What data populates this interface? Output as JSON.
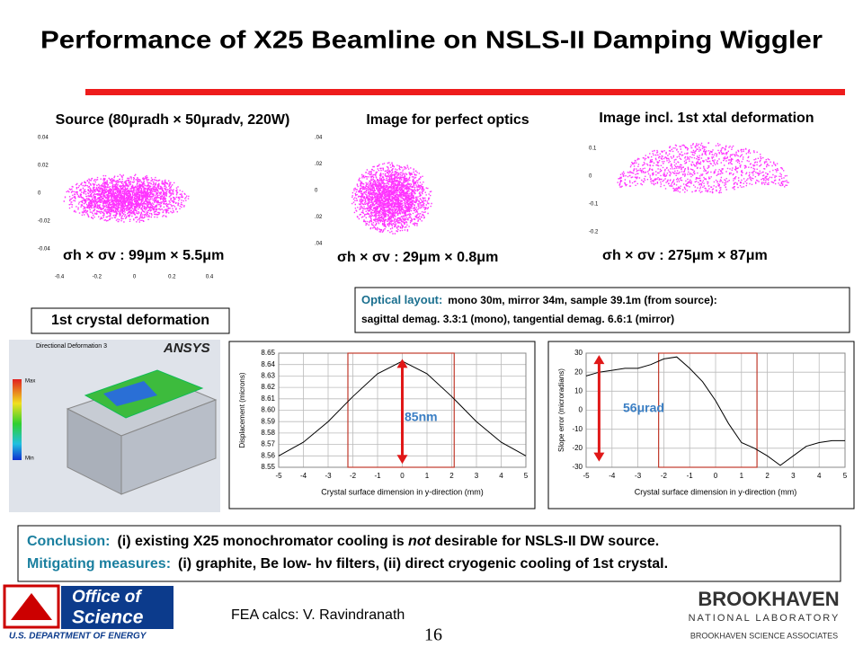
{
  "header": {
    "title": "Performance of X25 Beamline on NSLS-II Damping Wiggler"
  },
  "panels": [
    {
      "heading": "Source (80μradh × 50μradv, 220W)",
      "sigma": "σh × σv : 99μm × 5.5μm"
    },
    {
      "heading": "Image for perfect optics",
      "sigma": "σh × σv : 29μm × 0.8μm"
    },
    {
      "heading": "Image incl. 1st xtal deformation",
      "sigma": "σh × σv : 275μm × 87μm"
    }
  ],
  "optical_layout": {
    "label": "Optical layout:",
    "line1": "mono 30m, mirror 34m, sample 39.1m (from source):",
    "line2": "sagittal demag. 3.3:1 (mono), tangential  demag.  6.6:1 (mirror)"
  },
  "crystal_deformation_label": "1st crystal deformation",
  "ansys": {
    "logo": "ANSYS",
    "caption": "Directional Deformation 3",
    "max": "Max",
    "min": "Min"
  },
  "chart_data": [
    {
      "type": "scatter",
      "color": "#ff33ff",
      "xlim": [
        -0.4,
        0.4
      ],
      "ylim": [
        -0.04,
        0.04
      ],
      "xticks": [
        -0.4,
        -0.2,
        0,
        0.2,
        0.4
      ],
      "yticks": [
        -0.04,
        -0.02,
        0,
        0.02,
        0.04
      ]
    },
    {
      "type": "scatter",
      "color": "#ff33ff",
      "ylim": [
        -0.04,
        0.04
      ],
      "yticks": [
        {
          "value": -0.04,
          "label": ".04"
        },
        {
          "value": -0.02,
          "label": ".02"
        },
        0,
        {
          "value": 0.02,
          "label": ".02"
        },
        {
          "value": 0.04,
          "label": ".04"
        }
      ]
    },
    {
      "type": "scatter",
      "color": "#ff33ff",
      "ylim": [
        -0.2,
        0.1
      ],
      "yticks": [
        -0.2,
        -0.1,
        0,
        0.1
      ]
    },
    {
      "type": "line",
      "color": "#000000",
      "x": [
        -5,
        -4,
        -3,
        -2,
        -1,
        0,
        1,
        2,
        3,
        4,
        5
      ],
      "values": [
        8.56,
        8.572,
        8.59,
        8.612,
        8.632,
        8.643,
        8.632,
        8.612,
        8.59,
        8.572,
        8.56
      ],
      "xlim": [
        -5,
        5
      ],
      "ylim": [
        8.55,
        8.65
      ],
      "xticks": [
        -5,
        -4,
        -3,
        -2,
        -1,
        0,
        1,
        2,
        3,
        4,
        5
      ],
      "yticks": [
        8.55,
        8.56,
        8.57,
        8.58,
        8.59,
        {
          "value": 8.6,
          "label": "8.60"
        },
        8.61,
        8.62,
        8.63,
        8.64,
        8.65
      ],
      "xlabel": "Crystal surface dimension in y-direction (mm)",
      "ylabel": "Displacement (microns)",
      "annotation": "85nm",
      "grid": true
    },
    {
      "type": "line",
      "color": "#000000",
      "x": [
        -5,
        -4.5,
        -4,
        -3.5,
        -3,
        -2.5,
        -2,
        -1.5,
        -1,
        -0.5,
        0,
        0.5,
        1,
        1.5,
        2,
        2.5,
        3,
        3.5,
        4,
        4.5,
        5
      ],
      "values": [
        18,
        20,
        21,
        22,
        22,
        24,
        27,
        28,
        22,
        15,
        5,
        -7,
        -17,
        -20,
        -24,
        -29,
        -24,
        -19,
        -17,
        -16,
        -16
      ],
      "xlim": [
        -5,
        5
      ],
      "ylim": [
        -30,
        30
      ],
      "xticks": [
        -5,
        -4,
        -3,
        -2,
        -1,
        0,
        1,
        2,
        3,
        4,
        5
      ],
      "yticks": [
        -30,
        -20,
        -10,
        0,
        10,
        20,
        30
      ],
      "xlabel": "Crystal surface dimension in y-direction (mm)",
      "ylabel": "Slope error (microradians)",
      "annotation": "56μrad",
      "grid": true
    }
  ],
  "conclusion": {
    "label1": "Conclusion:",
    "before": "(i) existing X25 monochromator cooling is ",
    "emphasis": "not",
    "after": " desirable for NSLS-II DW source.",
    "label2": "Mitigating measures:",
    "line2": "(i) graphite, Be low- hν filters, (ii) direct cryogenic cooling of 1st crystal."
  },
  "footer": {
    "office_1": "Office of",
    "office_2": "Science",
    "doe": "U.S. DEPARTMENT OF ENERGY",
    "credit": "FEA calcs: V. Ravindranath",
    "page": "16",
    "bnl": "BROOKHAVEN",
    "bnl_sub": "NATIONAL LABORATORY",
    "bsa": "BROOKHAVEN SCIENCE ASSOCIATES"
  }
}
